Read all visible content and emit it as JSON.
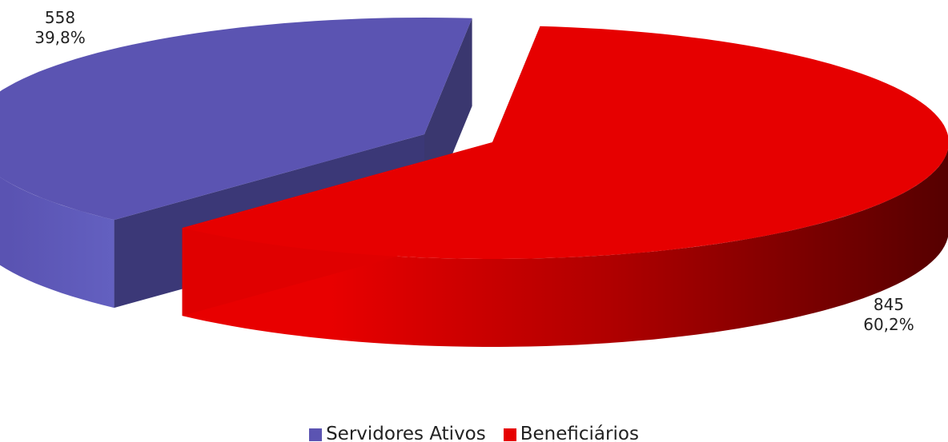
{
  "chart_data": {
    "type": "pie",
    "categories": [
      "Servidores Ativos",
      "Beneficiários"
    ],
    "values": [
      558,
      845
    ],
    "percent_labels": [
      "39,8%",
      "60,2%"
    ],
    "value_labels": [
      "558",
      "845"
    ],
    "colors": [
      "#5B54B2",
      "#E60000"
    ],
    "exploded": true,
    "style": "3d",
    "legend": "bottom"
  }
}
